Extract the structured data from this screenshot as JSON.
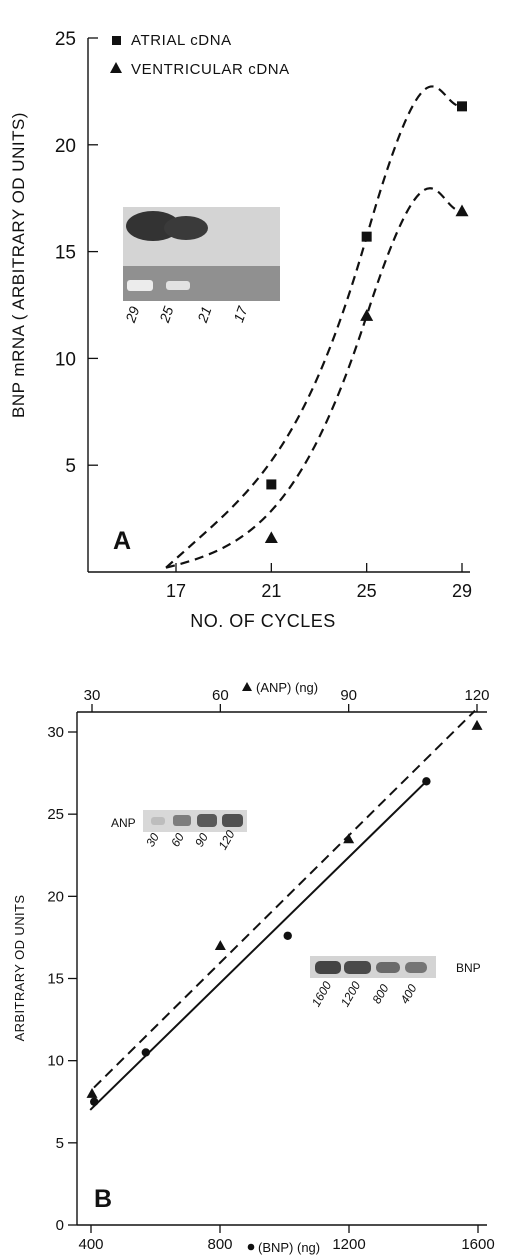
{
  "chart_data": [
    {
      "type": "scatter",
      "panel_label": "A",
      "xlabel": "NO. OF CYCLES",
      "ylabel": "BNP mRNA ( ARBITRARY OD UNITS)",
      "x_ticks": [
        17,
        21,
        25,
        29
      ],
      "y_ticks": [
        5,
        10,
        15,
        20,
        25
      ],
      "xlim": [
        13,
        30
      ],
      "ylim": [
        0,
        25
      ],
      "legend": {
        "placement": "top-left",
        "entries": [
          "ATRIAL cDNA",
          "VENTRICULAR cDNA"
        ]
      },
      "series": [
        {
          "name": "ATRIAL cDNA",
          "marker": "square",
          "line": "dashed",
          "points": [
            [
              17,
              0.2
            ],
            [
              21,
              4.1
            ],
            [
              25,
              15.7
            ],
            [
              29,
              21.8
            ]
          ]
        },
        {
          "name": "VENTRICULAR cDNA",
          "marker": "triangle",
          "line": "dashed",
          "points": [
            [
              17,
              0.2
            ],
            [
              21,
              1.6
            ],
            [
              25,
              12.0
            ],
            [
              29,
              16.9
            ]
          ]
        }
      ],
      "inset_gel_labels": [
        "29",
        "25",
        "21",
        "17"
      ]
    },
    {
      "type": "scatter",
      "panel_label": "B",
      "ylabel": "ARBITRARY OD UNITS",
      "x_bottom_label": "(BNP) (ng)",
      "x_top_label": "(ANP) (ng)",
      "x_bottom_ticks": [
        400,
        800,
        1200,
        1600
      ],
      "x_top_ticks": [
        30,
        60,
        90,
        120
      ],
      "y_ticks": [
        0,
        5,
        10,
        15,
        20,
        25,
        30
      ],
      "ylim": [
        0,
        30
      ],
      "series": [
        {
          "name": "ANP",
          "axis": "top",
          "marker": "triangle",
          "line": "dashed",
          "points": [
            [
              30,
              8.0
            ],
            [
              60,
              17.0
            ],
            [
              90,
              23.5
            ],
            [
              120,
              30.4
            ]
          ]
        },
        {
          "name": "BNP",
          "axis": "bottom",
          "marker": "circle",
          "line": "solid",
          "points": [
            [
              410,
              7.5
            ],
            [
              570,
              10.5
            ],
            [
              1010,
              17.6
            ],
            [
              1440,
              27.0
            ]
          ]
        }
      ],
      "insets": [
        {
          "name": "ANP",
          "labels": [
            "30",
            "60",
            "90",
            "120"
          ]
        },
        {
          "name": "BNP",
          "labels": [
            "1600",
            "1200",
            "800",
            "400"
          ]
        }
      ]
    }
  ]
}
